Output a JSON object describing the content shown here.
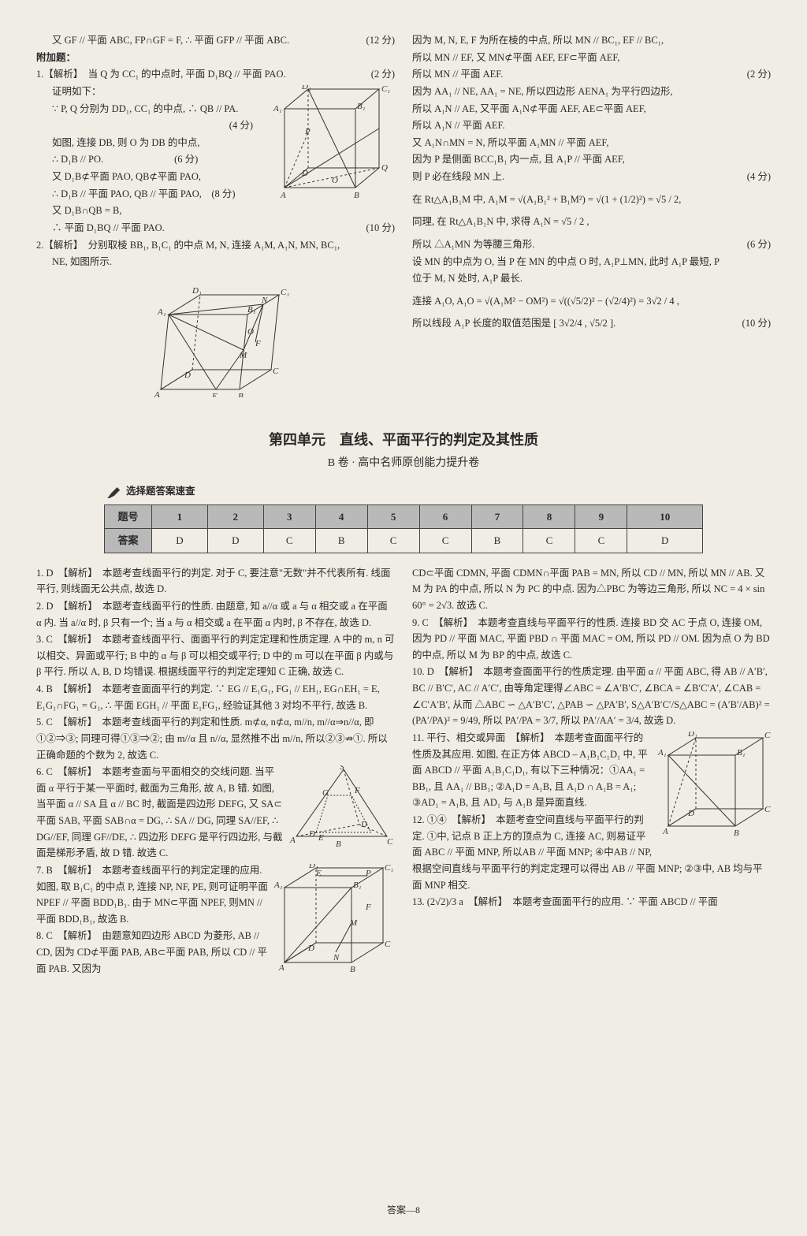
{
  "top": {
    "left": {
      "l1": "又 GF // 平面 ABC, FP∩GF = F, ∴ 平面 GFP // 平面 ABC.",
      "l1score": "(12 分)",
      "l2": "附加题：",
      "l3": "1.【解析】　当 Q 为 CC₁ 的中点时, 平面 D₁BQ // 平面 PAO.",
      "l3score": "(2 分)",
      "l4": "证明如下：",
      "l5": "∵ P, Q 分别为 DD₁, CC₁ 的中点, ∴ QB // PA.",
      "l5score": "(4 分)",
      "l6": "如图, 连接 DB, 则 O 为 DB 的中点,",
      "l7": "∴ D₁B // PO.",
      "l7score": "(6 分)",
      "l8": "又 D₁B⊄平面 PAO, QB⊄平面 PAO,",
      "l9": "∴ D₁B // 平面 PAO, QB // 平面 PAO,　(8 分)",
      "l10": "又 D₁B∩QB = B,",
      "l11": "∴ 平面 D₁BQ // 平面 PAO.",
      "l11score": "(10 分)",
      "l12": "2.【解析】　分别取棱 BB₁, B₁C₁ 的中点 M, N, 连接 A₁M, A₁N, MN, BC₁,",
      "l13": "NE, 如图所示."
    },
    "right": {
      "r1": "因为 M, N, E, F 为所在棱的中点, 所以 MN // BC₁, EF // BC₁,",
      "r2": "所以 MN // EF, 又 MN⊄平面 AEF, EF⊂平面 AEF,",
      "r3": "所以 MN // 平面 AEF.",
      "r3score": "(2 分)",
      "r4": "因为 AA₁ // NE, AA₁ = NE, 所以四边形 AENA₁ 为平行四边形,",
      "r5": "所以 A₁N // AE, 又平面 A₁N⊄平面 AEF, AE⊂平面 AEF,",
      "r6": "所以 A₁N // 平面 AEF.",
      "r7": "又 A₁N∩MN = N, 所以平面 A₁MN // 平面 AEF,",
      "r8": "因为 P 是侧面 BCC₁B₁ 内一点, 且 A₁P // 平面 AEF,",
      "r9": "则 P 必在线段 MN 上.",
      "r9score": "(4 分)",
      "r10": "在 Rt△A₁B₁M 中, A₁M = √(A₁B₁² + B₁M²) = √(1 + (1/2)²) = √5 / 2,",
      "r11": "同理, 在 Rt△A₁B₁N 中, 求得 A₁N = √5 / 2 ,",
      "r12": "所以 △A₁MN 为等腰三角形.",
      "r12score": "(6 分)",
      "r13": "设 MN 的中点为 O, 当 P 在 MN 的中点 O 时, A₁P⊥MN, 此时 A₁P 最短, P",
      "r14": "位于 M, N 处时, A₁P 最长.",
      "r15": "连接 A₁O, A₁O = √(A₁M² − OM²) = √((√5/2)² − (√2/4)²) = 3√2 / 4 ,",
      "r16": "所以线段 A₁P 长度的取值范围是 [ 3√2/4 , √5/2 ].",
      "r16score": "(10 分)"
    }
  },
  "unit_title": "第四单元　直线、平面平行的判定及其性质",
  "unit_sub": "B 卷 · 高中名师原创能力提升卷",
  "quick_label": "选择题答案速查",
  "table": {
    "header": [
      "题号",
      "1",
      "2",
      "3",
      "4",
      "5",
      "6",
      "7",
      "8",
      "9",
      "10"
    ],
    "row": [
      "答案",
      "D",
      "D",
      "C",
      "B",
      "C",
      "C",
      "B",
      "C",
      "C",
      "D"
    ]
  },
  "bottom": {
    "left": {
      "q1": "1. D　【解析】　本题考查线面平行的判定. 对于 C, 要注意\"无数\"并不代表所有. 线面平行, 则线面无公共点, 故选 D.",
      "q2": "2. D　【解析】　本题考查线面平行的性质. 由题意, 知 a//α 或 a 与 α 相交或 a 在平面 α 内. 当 a//α 时, β 只有一个; 当 a 与 α 相交或 a 在平面 α 内时, β 不存在, 故选 D.",
      "q3": "3. C　【解析】　本题考查线面平行、面面平行的判定定理和性质定理. A 中的 m, n 可以相交、异面或平行; B 中的 α 与 β 可以相交或平行; D 中的 m 可以在平面 β 内或与 β 平行. 所以 A, B, D 均错误. 根据线面平行的判定定理知 C 正确, 故选 C.",
      "q4": "4. B　【解析】　本题考查面面平行的判定. ∵ EG // E₁G₁, FG₁ // EH₁, EG∩EH₁ = E, E₁G₁∩FG₁ = G₁, ∴ 平面 EGH₁ // 平面 E₁FG₁, 经验证其他 3 对均不平行, 故选 B.",
      "q5": "5. C　【解析】　本题考查线面平行的判定和性质. m⊄α, n⊄α, m//n, m//α⇒n//α, 即①②⇒③; 同理可得①③⇒②; 由 m//α 且 n//α, 显然推不出 m//n, 所以②③⇏①. 所以正确命题的个数为 2, 故选 C.",
      "q6": "6. C　【解析】　本题考查面与平面相交的交线问题. 当平面 α 平行于某一平面时, 截面为三角形, 故 A, B 错. 如图, 当平面 α // SA 且 α // BC 时, 截面是四边形 DEFG, 又 SA⊂平面 SAB, 平面 SAB∩α = DG, ∴ SA // DG, 同理 SA//EF, ∴ DG//EF, 同理 GF//DE, ∴ 四边形 DEFG 是平行四边形, 与截面是梯形矛盾, 故 D 错. 故选 C.",
      "q7": "7. B　【解析】　本题考查线面平行的判定定理的应用. 如图, 取 B₁C₁ 的中点 P, 连接 NP, NF, PE, 则可证明平面 NPEF // 平面 BDD₁B₁. 由于 MN⊂平面 NPEF, 则MN // 平面 BDD₁B₁, 故选 B.",
      "q8": "8. C　【解析】　由题意知四边形 ABCD 为菱形, AB // CD, 因为 CD⊄平面 PAB, AB⊂平面 PAB, 所以 CD // 平面 PAB. 又因为"
    },
    "right": {
      "r1": "CD⊂平面 CDMN, 平面 CDMN∩平面 PAB = MN, 所以 CD // MN, 所以 MN // AB. 又 M 为 PA 的中点, 所以 N 为 PC 的中点. 因为△PBC 为等边三角形, 所以 NC = 4 × sin 60° = 2√3. 故选 C.",
      "r2": "9. C　【解析】　本题考查直线与平面平行的性质. 连接 BD 交 AC 于点 O, 连接 OM, 因为 PD // 平面 MAC, 平面 PBD ∩ 平面 MAC = OM, 所以 PD // OM. 因为点 O 为 BD 的中点, 所以 M 为 BP 的中点, 故选 C.",
      "r3": "10. D　【解析】　本题考查面面平行的性质定理. 由平面 α // 平面 ABC, 得 AB // A′B′, BC // B′C′, AC // A′C′, 由等角定理得∠ABC = ∠A′B′C′, ∠BCA = ∠B′C′A′, ∠CAB = ∠C′A′B′, 从而 △ABC ∽ △A′B′C′, △PAB ∽ △PA′B′, S△A′B′C′/S△ABC = (A′B′/AB)² = (PA′/PA)² = 9/49, 所以 PA′/PA = 3/7, 所以 PA′/AA′ = 3/4, 故选 D.",
      "r4": "11. 平行、相交或异面　【解析】　本题考查面面平行的性质及其应用. 如图, 在正方体 ABCD – A₁B₁C₁D₁ 中, 平面 ABCD // 平面 A₁B₁C₁D₁, 有以下三种情况：①AA₁ = BB₁, 且 AA₁ // BB₁; ②A₁D = A₁B, 且 A₁D ∩ A₁B = A₁; ③AD₁ = A₁B, 且 AD₁ 与 A₁B 是异面直线.",
      "r5": "12. ①④　【解析】　本题考查空间直线与平面平行的判定. ①中, 记点 B 正上方的顶点为 C, 连接 AC, 则易证平面 ABC // 平面 MNP, 所以AB // 平面 MNP; ④中AB // NP, 根据空间直线与平面平行的判定定理可以得出 AB // 平面 MNP; ②③中, AB 均与平面 MNP 相交.",
      "r6": "13. (2√2)/3 a　【解析】　本题考查面面平行的应用. ∵ 平面 ABCD // 平面"
    }
  },
  "footer": "答案—8"
}
